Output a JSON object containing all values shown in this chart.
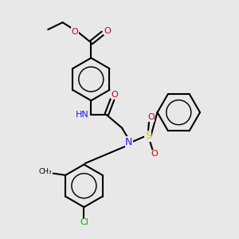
{
  "bg_color": "#e8e8e8",
  "colors": {
    "C": "#000000",
    "N": "#1a1aff",
    "O": "#cc0000",
    "S": "#cccc00",
    "Cl": "#00aa00",
    "H": "#888888"
  },
  "xlim": [
    0,
    10
  ],
  "ylim": [
    0,
    10
  ],
  "figsize": [
    3.0,
    3.0
  ],
  "dpi": 100
}
